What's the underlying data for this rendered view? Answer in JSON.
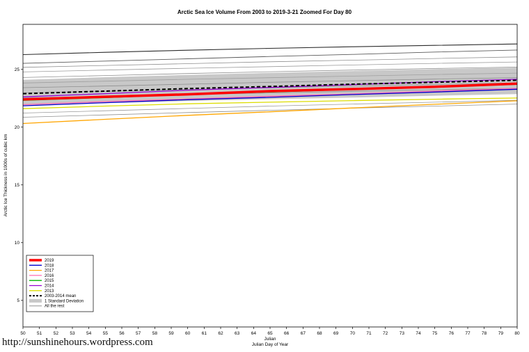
{
  "page": {
    "footer_url": "http://sunshinehours.wordpress.com"
  },
  "chart_data": {
    "type": "line",
    "title": "Arctic Sea Ice Volume From 2003 to 2019-3-21 Zoomed For Day 80",
    "xlabel_line1": "Julian",
    "xlabel_line2": "Julian Day of Year",
    "ylabel": "Arctic Ice Thickness in 1000s of cubic km",
    "xlim": [
      50,
      80
    ],
    "ylim": [
      2.7,
      28.9
    ],
    "x_ticks": [
      50,
      51,
      52,
      53,
      54,
      55,
      56,
      57,
      58,
      59,
      60,
      61,
      62,
      63,
      64,
      65,
      66,
      67,
      68,
      69,
      70,
      71,
      72,
      73,
      74,
      75,
      76,
      77,
      78,
      79,
      80
    ],
    "y_ticks": [
      5,
      10,
      15,
      20,
      25
    ],
    "grid": false,
    "legend_position": "bottom-left",
    "x": [
      50,
      55,
      60,
      65,
      70,
      75,
      80
    ],
    "series": [
      {
        "name": "2019",
        "color": "#FF0000",
        "width": 3.5,
        "values": [
          22.4,
          22.63,
          22.84,
          23.12,
          23.3,
          23.5,
          23.76
        ]
      },
      {
        "name": "2018",
        "color": "#0000CD",
        "width": 1.3,
        "values": [
          21.85,
          22.12,
          22.38,
          22.58,
          22.82,
          23.04,
          23.28
        ]
      },
      {
        "name": "2017",
        "color": "#FFA500",
        "width": 1.3,
        "values": [
          20.32,
          20.68,
          21.02,
          21.33,
          21.66,
          21.98,
          22.28
        ]
      },
      {
        "name": "2016",
        "color": "#FF69B4",
        "width": 1.3,
        "values": [
          21.95,
          22.22,
          22.44,
          22.68,
          22.88,
          23.12,
          23.36
        ]
      },
      {
        "name": "2015",
        "color": "#00B400",
        "width": 1.3,
        "values": [
          22.32,
          22.56,
          22.82,
          23.04,
          23.26,
          23.5,
          23.7
        ]
      },
      {
        "name": "2014",
        "color": "#9400D3",
        "width": 1.3,
        "values": [
          22.62,
          22.9,
          23.2,
          23.44,
          23.68,
          23.94,
          24.14
        ]
      },
      {
        "name": "2013",
        "color": "#DCDC00",
        "width": 1.3,
        "values": [
          21.6,
          21.82,
          22.02,
          22.16,
          22.3,
          22.42,
          22.52
        ]
      }
    ],
    "mean_series": {
      "name": "2003-2014 mean",
      "color": "#000000",
      "width": 2,
      "values": [
        22.9,
        23.12,
        23.34,
        23.52,
        23.72,
        23.88,
        24.06
      ]
    },
    "std_band": {
      "label": "1 Standard Deviation",
      "color": "#C8C8C8",
      "lower": [
        21.9,
        22.08,
        22.26,
        22.42,
        22.56,
        22.72,
        22.86
      ],
      "upper": [
        24.1,
        24.32,
        24.52,
        24.7,
        24.86,
        25.02,
        25.16
      ]
    },
    "rest": {
      "label": "All the rest",
      "series": [
        {
          "color": "#2b2b2b",
          "width": 1.1,
          "values": [
            26.28,
            26.48,
            26.66,
            26.82,
            26.96,
            27.08,
            27.2
          ]
        },
        {
          "color": "#5a5a5a",
          "width": 0.9,
          "values": [
            25.52,
            25.72,
            25.92,
            26.12,
            26.3,
            26.5,
            26.68
          ]
        },
        {
          "color": "#8f8f8f",
          "width": 0.8,
          "values": [
            25.18,
            25.34,
            25.5,
            25.66,
            25.8,
            25.94,
            26.08
          ]
        },
        {
          "color": "#9a9a9a",
          "width": 0.8,
          "values": [
            24.78,
            24.94,
            25.1,
            25.24,
            25.38,
            25.52,
            25.64
          ]
        },
        {
          "color": "#8f8f8f",
          "width": 0.8,
          "values": [
            24.3,
            24.47,
            24.64,
            24.8,
            24.94,
            25.08,
            25.2
          ]
        },
        {
          "color": "#a0a0a0",
          "width": 0.8,
          "values": [
            23.82,
            23.98,
            24.14,
            24.28,
            24.42,
            24.56,
            24.68
          ]
        },
        {
          "color": "#8f8f8f",
          "width": 0.8,
          "values": [
            23.42,
            23.56,
            23.72,
            23.88,
            24.02,
            24.16,
            24.28
          ]
        },
        {
          "color": "#969696",
          "width": 0.8,
          "values": [
            22.96,
            23.1,
            23.26,
            23.4,
            23.56,
            23.7,
            23.84
          ]
        },
        {
          "color": "#8f8f8f",
          "width": 0.8,
          "values": [
            22.52,
            22.66,
            22.82,
            22.96,
            23.1,
            23.24,
            23.36
          ]
        },
        {
          "color": "#9a9a9a",
          "width": 0.8,
          "values": [
            21.22,
            21.42,
            21.62,
            21.82,
            22.0,
            22.16,
            22.32
          ]
        },
        {
          "color": "#8f8f8f",
          "width": 0.8,
          "values": [
            20.86,
            21.06,
            21.26,
            21.46,
            21.64,
            21.82,
            22.0
          ]
        }
      ]
    },
    "legend": [
      {
        "label": "2019",
        "type": "line",
        "color": "#FF0000",
        "width": 3.5
      },
      {
        "label": "2018",
        "type": "line",
        "color": "#0000CD",
        "width": 1.3
      },
      {
        "label": "2017",
        "type": "line",
        "color": "#FFA500",
        "width": 1.3
      },
      {
        "label": "2016",
        "type": "line",
        "color": "#FF69B4",
        "width": 1.3
      },
      {
        "label": "2015",
        "type": "line",
        "color": "#00B400",
        "width": 1.3
      },
      {
        "label": "2014",
        "type": "line",
        "color": "#9400D3",
        "width": 1.3
      },
      {
        "label": "2013",
        "type": "line",
        "color": "#DCDC00",
        "width": 1.3
      },
      {
        "label": "2003-2014 mean",
        "type": "dashed",
        "color": "#000000",
        "width": 2
      },
      {
        "label": "1 Standard Deviation",
        "type": "band",
        "color": "#C8C8C8",
        "width": 5
      },
      {
        "label": "All the rest",
        "type": "line",
        "color": "#909090",
        "width": 1
      }
    ]
  }
}
